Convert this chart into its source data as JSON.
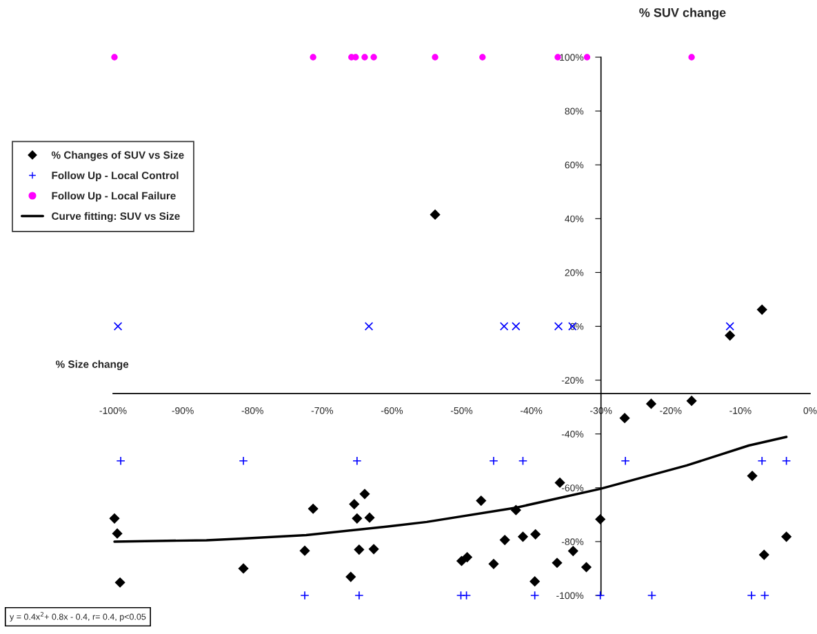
{
  "chart_data": {
    "type": "scatter",
    "xlabel": "% Size change",
    "ylabel": "% SUV change",
    "xlim": [
      -100,
      0
    ],
    "ylim": [
      -100,
      100
    ],
    "xticks": [
      {
        "value": -100,
        "label": "-100%"
      },
      {
        "value": -90,
        "label": "-90%"
      },
      {
        "value": -80,
        "label": "-80%"
      },
      {
        "value": -70,
        "label": "-70%"
      },
      {
        "value": -60,
        "label": "-60%"
      },
      {
        "value": -50,
        "label": "-50%"
      },
      {
        "value": -40,
        "label": "-40%"
      },
      {
        "value": -30,
        "label": "-30%"
      },
      {
        "value": -20,
        "label": "-20%"
      },
      {
        "value": -10,
        "label": "-10%"
      },
      {
        "value": 0,
        "label": "0%"
      }
    ],
    "yticks": [
      {
        "value": -100,
        "label": "-100%"
      },
      {
        "value": -80,
        "label": "-80%"
      },
      {
        "value": -60,
        "label": "-60%"
      },
      {
        "value": -40,
        "label": "-40%"
      },
      {
        "value": -20,
        "label": "-20%"
      },
      {
        "value": 0,
        "label": "0%"
      },
      {
        "value": 20,
        "label": "20%"
      },
      {
        "value": 40,
        "label": "40%"
      },
      {
        "value": 60,
        "label": "60%"
      },
      {
        "value": 80,
        "label": "80%"
      },
      {
        "value": 100,
        "label": "100%"
      }
    ],
    "grid": false,
    "legend": "upper left",
    "annotations": [
      "y = 0.4x$^{2}$+ 0.8x - 0.4, r= 0.4, p<0.05"
    ],
    "series": [
      {
        "name": "% Changes of SUV vs Size",
        "type": "scatter",
        "marker": "diamond",
        "color": "#000000",
        "x": [
          -99.8,
          -99.4,
          -99.0,
          -81.3,
          -71.3,
          -72.5,
          -65.4,
          -63.9,
          -65.0,
          -63.2,
          -64.7,
          -62.6,
          -65.9,
          -47.2,
          -42.2,
          -43.8,
          -41.2,
          -39.4,
          -35.9,
          -30.1,
          -34.0,
          -36.3,
          -32.1,
          -39.5,
          -50.0,
          -49.2,
          -45.4,
          -26.6,
          -22.8,
          -17.0,
          -8.3,
          -6.6,
          -3.4,
          -53.8,
          -11.5,
          -6.9
        ],
        "values": [
          -71.4,
          -77.0,
          -95.2,
          -90.0,
          -67.8,
          -83.4,
          -66.1,
          -62.3,
          -71.4,
          -71.1,
          -83.0,
          -82.8,
          -93.1,
          -64.8,
          -68.3,
          -79.4,
          -78.2,
          -77.3,
          -58.1,
          -71.7,
          -83.5,
          -87.9,
          -89.5,
          -94.8,
          -87.2,
          -85.8,
          -88.3,
          -34.1,
          -28.8,
          -27.7,
          -55.6,
          -84.9,
          -78.2,
          41.5,
          -3.4,
          6.2
        ]
      },
      {
        "name": "Follow Up - Local Control",
        "type": "scatter",
        "marker": "cross",
        "color": "#0000ff",
        "x": [
          -98.9,
          -81.3,
          -65.0,
          -45.4,
          -41.2,
          -26.5,
          -6.9,
          -3.4,
          -72.5,
          -64.7,
          -50.1,
          -49.3,
          -39.5,
          -30.1,
          -22.7,
          -8.4,
          -6.5
        ],
        "values": [
          -50,
          -50,
          -50,
          -50,
          -50,
          -50,
          -50,
          -50,
          -100,
          -100,
          -100,
          -100,
          -100,
          -100,
          -100,
          -100,
          -100
        ]
      },
      {
        "type": "scatter",
        "marker": "x",
        "color": "#0000ff",
        "x": [
          -99.3,
          -63.3,
          -43.9,
          -42.2,
          -36.1,
          -34.1,
          -11.5
        ],
        "values": [
          0,
          0,
          0,
          0,
          0,
          0,
          0
        ]
      },
      {
        "name": "Follow Up - Local Failure",
        "type": "scatter",
        "marker": "circle",
        "color": "#ff00ff",
        "x": [
          -99.8,
          -71.3,
          -65.8,
          -65.2,
          -63.9,
          -62.6,
          -53.8,
          -47.0,
          -36.2,
          -32.0,
          -17.0
        ],
        "values": [
          100,
          100,
          100,
          100,
          100,
          100,
          100,
          100,
          100,
          100,
          100
        ]
      },
      {
        "name": "Curve fitting: SUV vs Size",
        "type": "line",
        "marker": "none",
        "line_style": "solid",
        "color": "#000000",
        "x": [
          -99.8,
          -86.6,
          -81.4,
          -72.3,
          -60.6,
          -55.0,
          -42.2,
          -30.1,
          -17.7,
          -8.8,
          -3.4
        ],
        "values": [
          -80.0,
          -79.5,
          -78.9,
          -77.6,
          -74.4,
          -72.7,
          -67.4,
          -60.4,
          -51.7,
          -44.3,
          -41.1
        ]
      }
    ]
  }
}
